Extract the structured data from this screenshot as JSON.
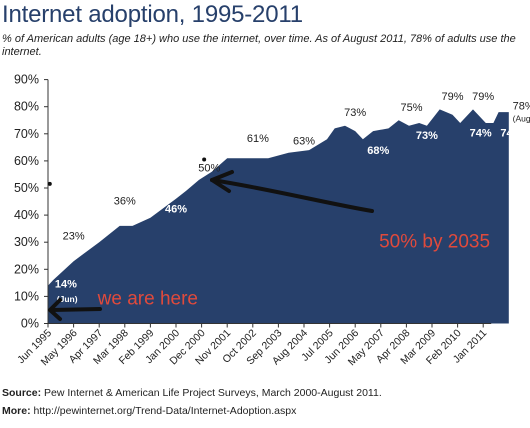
{
  "chart_data": {
    "type": "area",
    "title": "Internet adoption, 1995-2011",
    "subtitle": "% of American adults (age 18+) who use the internet, over time. As of August 2011, 78% of adults use the internet.",
    "xlabel": "",
    "ylabel": "",
    "ylim": [
      0,
      90
    ],
    "y_ticks": [
      "0%",
      "10%",
      "20%",
      "30%",
      "40%",
      "50%",
      "60%",
      "70%",
      "80%",
      "90%"
    ],
    "x_ticks": [
      "Jun 1995",
      "May 1996",
      "Apr 1997",
      "Mar 1998",
      "Feb 1999",
      "Jan 2000",
      "Dec 2000",
      "Nov 2001",
      "Oct 2002",
      "Sep 2003",
      "Aug 2004",
      "Jul 2005",
      "Jun 2006",
      "May 2007",
      "Apr 2008",
      "Mar 2009",
      "Feb 2010",
      "Jan 2011"
    ],
    "grid": false,
    "fill_color": "#27406b",
    "series": [
      {
        "values": [
          {
            "x": 0.0,
            "y": 14
          },
          {
            "x": 0.2,
            "y": 16
          },
          {
            "x": 1.0,
            "y": 23
          },
          {
            "x": 2.0,
            "y": 30
          },
          {
            "x": 2.8,
            "y": 36
          },
          {
            "x": 3.3,
            "y": 36
          },
          {
            "x": 4.0,
            "y": 39
          },
          {
            "x": 5.0,
            "y": 46
          },
          {
            "x": 5.4,
            "y": 49
          },
          {
            "x": 5.9,
            "y": 53
          },
          {
            "x": 6.4,
            "y": 56
          },
          {
            "x": 7.0,
            "y": 61
          },
          {
            "x": 7.6,
            "y": 61
          },
          {
            "x": 8.6,
            "y": 61
          },
          {
            "x": 9.4,
            "y": 63
          },
          {
            "x": 10.2,
            "y": 64
          },
          {
            "x": 10.9,
            "y": 68
          },
          {
            "x": 11.2,
            "y": 72
          },
          {
            "x": 11.6,
            "y": 73
          },
          {
            "x": 12.0,
            "y": 71
          },
          {
            "x": 12.3,
            "y": 68
          },
          {
            "x": 12.7,
            "y": 71
          },
          {
            "x": 13.3,
            "y": 72
          },
          {
            "x": 13.7,
            "y": 75
          },
          {
            "x": 14.1,
            "y": 73
          },
          {
            "x": 14.5,
            "y": 74
          },
          {
            "x": 14.8,
            "y": 73
          },
          {
            "x": 15.3,
            "y": 79
          },
          {
            "x": 15.8,
            "y": 77
          },
          {
            "x": 16.1,
            "y": 74
          },
          {
            "x": 16.6,
            "y": 79
          },
          {
            "x": 17.1,
            "y": 74
          },
          {
            "x": 17.4,
            "y": 74
          },
          {
            "x": 17.6,
            "y": 78
          },
          {
            "x": 18.0,
            "y": 78
          }
        ]
      }
    ],
    "data_labels": [
      {
        "text": "14%",
        "x": 0.7,
        "y": 13.3,
        "color": "white"
      },
      {
        "text": "(Jun)",
        "x": 0.75,
        "y": 8.0,
        "color": "white",
        "small": true
      },
      {
        "text": "23%",
        "x": 1.0,
        "y": 31.0,
        "color": "dark"
      },
      {
        "text": "36%",
        "x": 3.0,
        "y": 44.0,
        "color": "dark"
      },
      {
        "text": "46%",
        "x": 5.0,
        "y": 41.0,
        "color": "white"
      },
      {
        "text": "50%",
        "x": 6.3,
        "y": 56.0,
        "color": "dark"
      },
      {
        "text": "61%",
        "x": 8.2,
        "y": 67.0,
        "color": "dark"
      },
      {
        "text": "63%",
        "x": 10.0,
        "y": 66.0,
        "color": "dark"
      },
      {
        "text": "73%",
        "x": 12.0,
        "y": 76.5,
        "color": "dark"
      },
      {
        "text": "68%",
        "x": 12.9,
        "y": 62.5,
        "color": "white"
      },
      {
        "text": "75%",
        "x": 14.2,
        "y": 78.5,
        "color": "dark"
      },
      {
        "text": "73%",
        "x": 14.8,
        "y": 68.0,
        "color": "white"
      },
      {
        "text": "79%",
        "x": 15.8,
        "y": 82.5,
        "color": "dark"
      },
      {
        "text": "79%",
        "x": 17.0,
        "y": 82.5,
        "color": "dark"
      },
      {
        "text": "74%",
        "x": 16.9,
        "y": 69.0,
        "color": "white"
      },
      {
        "text": "74%",
        "x": 18.1,
        "y": 69.0,
        "color": "white"
      },
      {
        "text": "78%",
        "x": 19.2,
        "y": 79.0,
        "color": "dark",
        "outside": true
      },
      {
        "text": "(Aug)",
        "x": 19.2,
        "y": 74.5,
        "color": "dark",
        "outside": true,
        "small": true
      }
    ],
    "annotations": [
      {
        "text": "we are here",
        "color": "#e04a3c",
        "x": 3.9,
        "y": 7.0
      },
      {
        "text": "50% by 2035",
        "color": "#e04a3c",
        "x": 15.1,
        "y": 28.0
      }
    ]
  },
  "footer": {
    "source_label": "Source:",
    "source_text": "Pew Internet & American Life Project Surveys, March 2000-August 2011.",
    "more_label": "More:",
    "more_text": "http://pewinternet.org/Trend-Data/Internet-Adoption.aspx"
  }
}
